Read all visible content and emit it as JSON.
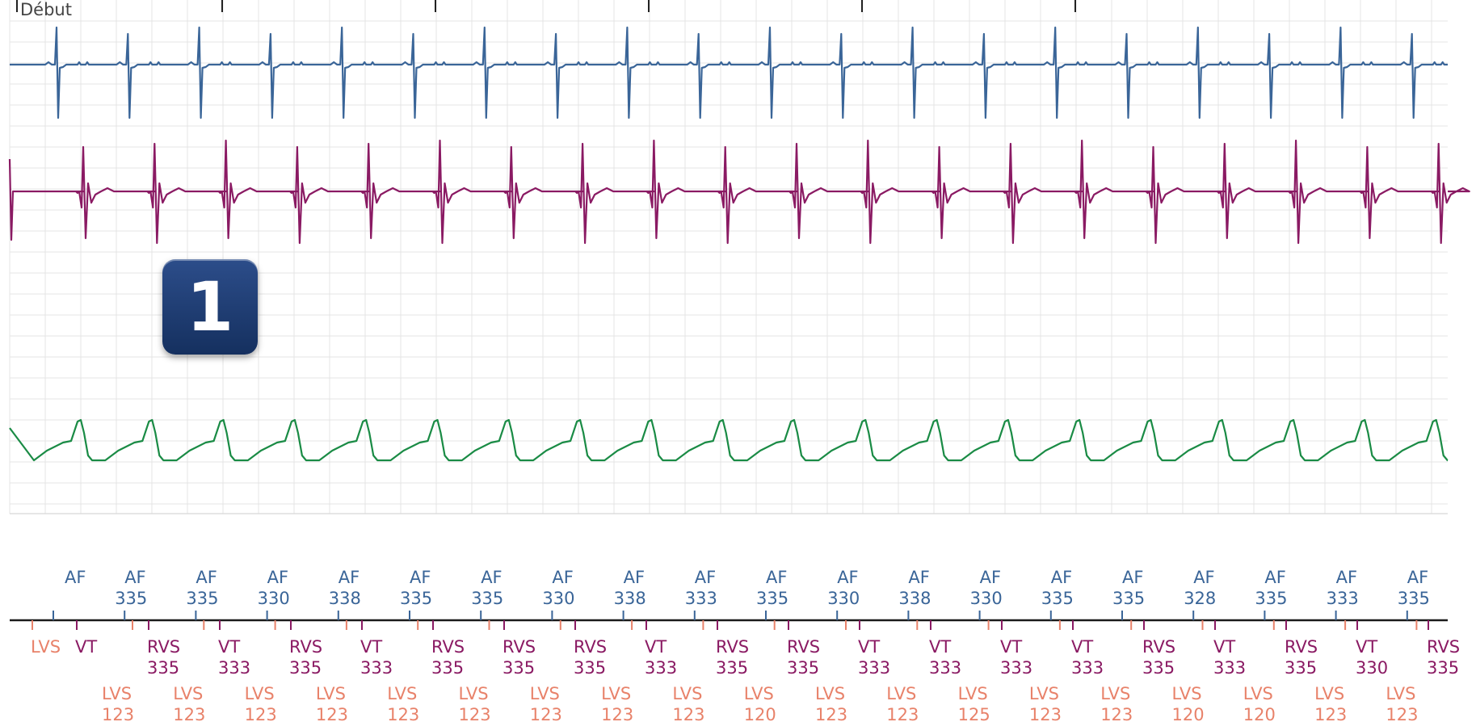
{
  "colors": {
    "atrial": "#3a6598",
    "rv": "#8a1a63",
    "lv": "#1a8b45",
    "lvs_marker": "#e8826a",
    "grid": "#e4e4e4"
  },
  "chart_data": {
    "type": "line",
    "start_label": "Début",
    "badge_label": "1",
    "traces": [
      {
        "channel": "atrial",
        "shape": "atrial"
      },
      {
        "channel": "rv",
        "shape": "rv"
      },
      {
        "channel": "blank",
        "shape": "none"
      },
      {
        "channel": "lv",
        "shape": "lv"
      }
    ],
    "markers": {
      "atrial": [
        {
          "label": "AF",
          "value": ""
        },
        {
          "label": "AF",
          "value": "335"
        },
        {
          "label": "AF",
          "value": "335"
        },
        {
          "label": "AF",
          "value": "330"
        },
        {
          "label": "AF",
          "value": "338"
        },
        {
          "label": "AF",
          "value": "335"
        },
        {
          "label": "AF",
          "value": "335"
        },
        {
          "label": "AF",
          "value": "330"
        },
        {
          "label": "AF",
          "value": "338"
        },
        {
          "label": "AF",
          "value": "333"
        },
        {
          "label": "AF",
          "value": "335"
        },
        {
          "label": "AF",
          "value": "330"
        },
        {
          "label": "AF",
          "value": "338"
        },
        {
          "label": "AF",
          "value": "330"
        },
        {
          "label": "AF",
          "value": "335"
        },
        {
          "label": "AF",
          "value": "335"
        },
        {
          "label": "AF",
          "value": "328"
        },
        {
          "label": "AF",
          "value": "335"
        },
        {
          "label": "AF",
          "value": "333"
        },
        {
          "label": "AF",
          "value": "335"
        }
      ],
      "ventricular": [
        {
          "label": "LVS",
          "value": ""
        },
        {
          "label": "VT",
          "value": ""
        },
        {
          "label": "RVS",
          "value": "335"
        },
        {
          "label": "VT",
          "value": "333"
        },
        {
          "label": "RVS",
          "value": "335"
        },
        {
          "label": "VT",
          "value": "333"
        },
        {
          "label": "RVS",
          "value": "335"
        },
        {
          "label": "RVS",
          "value": "335"
        },
        {
          "label": "RVS",
          "value": "335"
        },
        {
          "label": "VT",
          "value": "333"
        },
        {
          "label": "RVS",
          "value": "335"
        },
        {
          "label": "RVS",
          "value": "335"
        },
        {
          "label": "VT",
          "value": "333"
        },
        {
          "label": "VT",
          "value": "333"
        },
        {
          "label": "VT",
          "value": "333"
        },
        {
          "label": "VT",
          "value": "333"
        },
        {
          "label": "RVS",
          "value": "335"
        },
        {
          "label": "VT",
          "value": "333"
        },
        {
          "label": "RVS",
          "value": "335"
        },
        {
          "label": "VT",
          "value": "330"
        },
        {
          "label": "RVS",
          "value": "335"
        }
      ],
      "lvs": [
        {
          "label": "LVS",
          "value": "123"
        },
        {
          "label": "LVS",
          "value": "123"
        },
        {
          "label": "LVS",
          "value": "123"
        },
        {
          "label": "LVS",
          "value": "123"
        },
        {
          "label": "LVS",
          "value": "123"
        },
        {
          "label": "LVS",
          "value": "123"
        },
        {
          "label": "LVS",
          "value": "123"
        },
        {
          "label": "LVS",
          "value": "123"
        },
        {
          "label": "LVS",
          "value": "123"
        },
        {
          "label": "LVS",
          "value": "120"
        },
        {
          "label": "LVS",
          "value": "123"
        },
        {
          "label": "LVS",
          "value": "123"
        },
        {
          "label": "LVS",
          "value": "125"
        },
        {
          "label": "LVS",
          "value": "123"
        },
        {
          "label": "LVS",
          "value": "123"
        },
        {
          "label": "LVS",
          "value": "120"
        },
        {
          "label": "LVS",
          "value": "120"
        },
        {
          "label": "LVS",
          "value": "123"
        },
        {
          "label": "LVS",
          "value": "123"
        }
      ]
    }
  }
}
